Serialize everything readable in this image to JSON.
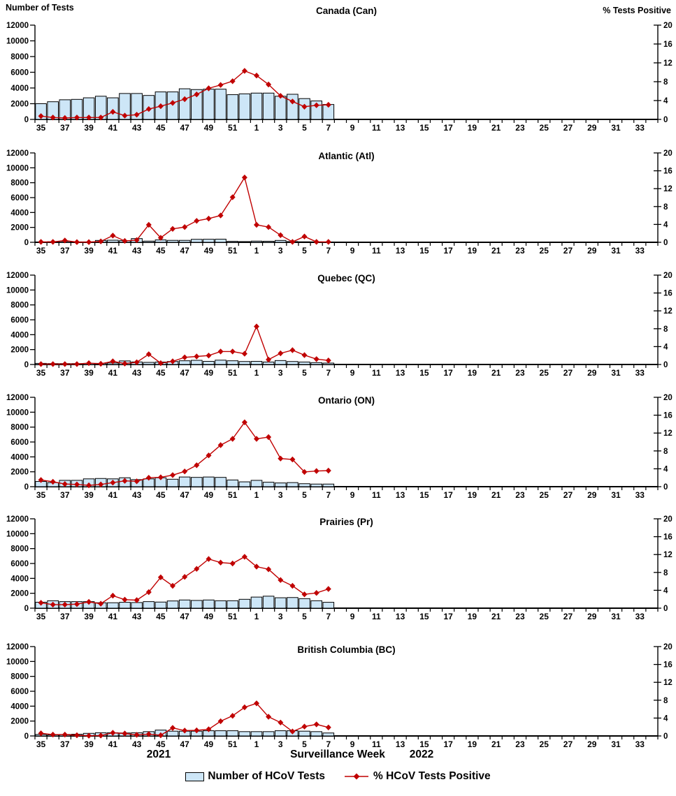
{
  "figure": {
    "left_axis_title": "Number of Tests",
    "right_axis_title": "% Tests Positive",
    "x_axis_title": "Surveillance Week",
    "year_left": "2021",
    "year_right": "2022",
    "legend": {
      "bars_label": "Number of HCoV Tests",
      "line_label": "% HCoV Tests Positive"
    },
    "colors": {
      "bar_fill": "#cde6f7",
      "bar_stroke": "#000000",
      "line": "#c00000"
    }
  },
  "axes": {
    "left_range": [
      0,
      12000
    ],
    "right_range": [
      0,
      20
    ],
    "left_ticks": [
      0,
      2000,
      4000,
      6000,
      8000,
      10000,
      12000
    ],
    "right_ticks": [
      0,
      4,
      8,
      12,
      16,
      20
    ],
    "weeks_all": [
      35,
      36,
      37,
      38,
      39,
      40,
      41,
      42,
      43,
      44,
      45,
      46,
      47,
      48,
      49,
      50,
      51,
      52,
      1,
      2,
      3,
      4,
      5,
      6,
      7,
      8,
      9,
      10,
      11,
      12,
      13,
      14,
      15,
      16,
      17,
      18,
      19,
      20,
      21,
      22,
      23,
      24,
      25,
      26,
      27,
      28,
      29,
      30,
      31,
      32,
      33,
      34
    ],
    "labeled_weeks": [
      35,
      37,
      39,
      41,
      43,
      45,
      47,
      49,
      51,
      1,
      3,
      5,
      7,
      9,
      11,
      13,
      15,
      17,
      19,
      21,
      23,
      25,
      27,
      29,
      31,
      33
    ]
  },
  "chart_data": [
    {
      "type": "combo-bar-line",
      "title": "Canada (Can)",
      "x_weeks": [
        35,
        36,
        37,
        38,
        39,
        40,
        41,
        42,
        43,
        44,
        45,
        46,
        47,
        48,
        49,
        50,
        51,
        52,
        1,
        2,
        3,
        4,
        5,
        6,
        7
      ],
      "bars_number_of_tests": [
        2000,
        2250,
        2500,
        2550,
        2750,
        2950,
        2750,
        3300,
        3300,
        3050,
        3500,
        3500,
        3900,
        3800,
        3850,
        3850,
        3150,
        3250,
        3350,
        3350,
        2950,
        3200,
        2650,
        2350,
        1900
      ],
      "line_pct_positive": [
        0.7,
        0.4,
        0.3,
        0.4,
        0.4,
        0.4,
        1.6,
        0.8,
        1.0,
        2.2,
        2.8,
        3.5,
        4.3,
        5.3,
        6.6,
        7.3,
        8.1,
        10.3,
        9.3,
        7.4,
        5.0,
        3.8,
        2.7,
        3.0,
        3.1
      ]
    },
    {
      "type": "combo-bar-line",
      "title": "Atlantic (Atl)",
      "x_weeks": [
        35,
        36,
        37,
        38,
        39,
        40,
        41,
        42,
        43,
        44,
        45,
        46,
        47,
        48,
        49,
        50,
        51,
        52,
        1,
        2,
        3,
        4,
        5,
        6,
        7
      ],
      "bars_number_of_tests": [
        50,
        80,
        130,
        60,
        60,
        250,
        280,
        220,
        500,
        160,
        320,
        260,
        260,
        400,
        410,
        420,
        130,
        100,
        160,
        140,
        250,
        100,
        70,
        60,
        50
      ],
      "line_pct_positive": [
        0.1,
        0.1,
        0.4,
        0.05,
        0.05,
        0.2,
        1.5,
        0.3,
        0.5,
        3.9,
        1.0,
        3.0,
        3.4,
        4.8,
        5.3,
        6.0,
        10.1,
        14.5,
        3.9,
        3.4,
        1.6,
        0.1,
        1.3,
        0.1,
        0.1
      ]
    },
    {
      "type": "combo-bar-line",
      "title": "Quebec (QC)",
      "x_weeks": [
        35,
        36,
        37,
        38,
        39,
        40,
        41,
        42,
        43,
        44,
        45,
        46,
        47,
        48,
        49,
        50,
        51,
        52,
        1,
        2,
        3,
        4,
        5,
        6,
        7
      ],
      "bars_number_of_tests": [
        150,
        120,
        120,
        120,
        150,
        150,
        200,
        480,
        340,
        280,
        330,
        400,
        500,
        560,
        420,
        580,
        500,
        400,
        420,
        330,
        530,
        400,
        330,
        250,
        190
      ],
      "line_pct_positive": [
        0.1,
        0.1,
        0.1,
        0.1,
        0.3,
        0.15,
        0.7,
        0.2,
        0.5,
        2.3,
        0.3,
        0.7,
        1.6,
        1.8,
        2.0,
        2.9,
        2.9,
        2.4,
        8.5,
        1.1,
        2.5,
        3.2,
        2.1,
        1.2,
        0.9
      ]
    },
    {
      "type": "combo-bar-line",
      "title": "Ontario (ON)",
      "x_weeks": [
        35,
        36,
        37,
        38,
        39,
        40,
        41,
        42,
        43,
        44,
        45,
        46,
        47,
        48,
        49,
        50,
        51,
        52,
        1,
        2,
        3,
        4,
        5,
        6,
        7
      ],
      "bars_number_of_tests": [
        700,
        550,
        850,
        850,
        1050,
        1100,
        1050,
        1200,
        950,
        1050,
        1200,
        1000,
        1300,
        1250,
        1300,
        1250,
        900,
        650,
        850,
        600,
        500,
        550,
        400,
        350,
        350
      ],
      "line_pct_positive": [
        1.5,
        1.1,
        0.6,
        0.5,
        0.3,
        0.5,
        0.9,
        1.3,
        1.2,
        2.0,
        2.1,
        2.6,
        3.4,
        4.8,
        7.0,
        9.3,
        10.7,
        14.4,
        10.7,
        11.1,
        6.3,
        6.1,
        3.3,
        3.5,
        3.6
      ]
    },
    {
      "type": "combo-bar-line",
      "title": "Prairies (Pr)",
      "x_weeks": [
        35,
        36,
        37,
        38,
        39,
        40,
        41,
        42,
        43,
        44,
        45,
        46,
        47,
        48,
        49,
        50,
        51,
        52,
        1,
        2,
        3,
        4,
        5,
        6,
        7
      ],
      "bars_number_of_tests": [
        800,
        1000,
        880,
        880,
        880,
        730,
        730,
        790,
        760,
        880,
        820,
        970,
        1100,
        1040,
        1100,
        1000,
        1000,
        1190,
        1490,
        1610,
        1400,
        1430,
        1280,
        1000,
        790
      ],
      "line_pct_positive": [
        1.2,
        0.8,
        0.8,
        0.9,
        1.4,
        1.0,
        2.8,
        1.9,
        1.8,
        3.6,
        6.9,
        5.0,
        7.0,
        8.8,
        11.0,
        10.2,
        10.0,
        11.5,
        9.3,
        8.7,
        6.3,
        5.0,
        3.1,
        3.4,
        4.3
      ]
    },
    {
      "type": "combo-bar-line",
      "title": "British Columbia (BC)",
      "x_weeks": [
        35,
        36,
        37,
        38,
        39,
        40,
        41,
        42,
        43,
        44,
        45,
        46,
        47,
        48,
        49,
        50,
        51,
        52,
        1,
        2,
        3,
        4,
        5,
        6,
        7
      ],
      "bars_number_of_tests": [
        200,
        150,
        200,
        230,
        350,
        430,
        430,
        400,
        430,
        580,
        790,
        640,
        640,
        640,
        700,
        700,
        700,
        580,
        580,
        580,
        700,
        700,
        640,
        580,
        400
      ],
      "line_pct_positive": [
        0.6,
        0.3,
        0.3,
        0.15,
        0.05,
        0.1,
        0.7,
        0.55,
        0.25,
        0.4,
        0.15,
        1.8,
        1.2,
        1.25,
        1.5,
        3.3,
        4.5,
        6.4,
        7.3,
        4.3,
        3.0,
        1.0,
        2.1,
        2.6,
        1.9
      ]
    }
  ]
}
